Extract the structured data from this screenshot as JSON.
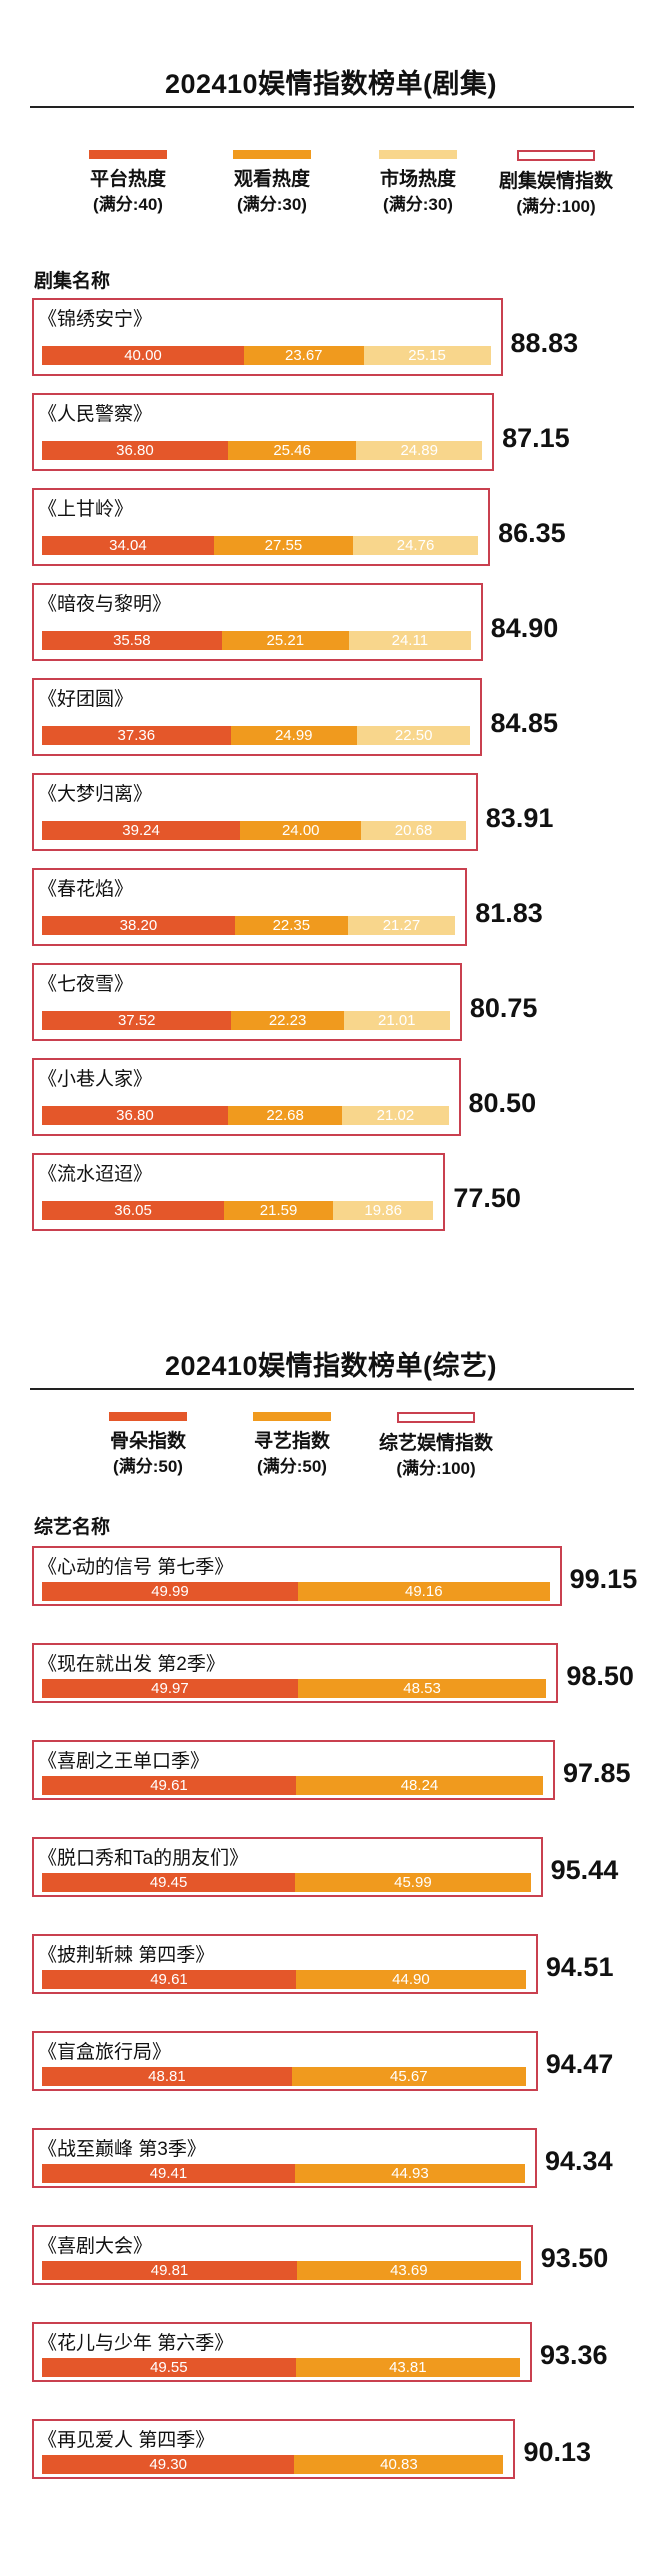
{
  "colors": {
    "platform": "#e4572a",
    "viewing": "#f09a1e",
    "market": "#f8d68c",
    "outline": "#c9404f"
  },
  "drama": {
    "title": "202410娱情指数榜单(剧集)",
    "legend": [
      {
        "name": "平台热度",
        "sub": "(满分:40)",
        "color": "#e4572a",
        "outline": false
      },
      {
        "name": "观看热度",
        "sub": "(满分:30)",
        "color": "#f09a1e",
        "outline": false
      },
      {
        "name": "市场热度",
        "sub": "(满分:30)",
        "color": "#f8d68c",
        "outline": false
      },
      {
        "name": "剧集娱情指数",
        "sub": "(满分:100)",
        "color": "#c9404f",
        "outline": true
      }
    ],
    "column_header": "剧集名称"
  },
  "variety": {
    "title": "202410娱情指数榜单(综艺)",
    "legend": [
      {
        "name": "骨朵指数",
        "sub": "(满分:50)",
        "color": "#e4572a",
        "outline": false
      },
      {
        "name": "寻艺指数",
        "sub": "(满分:50)",
        "color": "#f09a1e",
        "outline": false
      },
      {
        "name": "综艺娱情指数",
        "sub": "(满分:100)",
        "color": "#c9404f",
        "outline": true
      }
    ],
    "column_header": "综艺名称"
  },
  "chart_data": [
    {
      "type": "bar",
      "orientation": "horizontal-stacked",
      "title": "202410娱情指数榜单(剧集)",
      "categories": [
        "《锦绣安宁》",
        "《人民警察》",
        "《上甘岭》",
        "《暗夜与黎明》",
        "《好团圆》",
        "《大梦归离》",
        "《春花焰》",
        "《七夜雪》",
        "《小巷人家》",
        "《流水迢迢》"
      ],
      "series": [
        {
          "name": "平台热度",
          "values": [
            40.0,
            36.8,
            34.04,
            35.58,
            37.36,
            39.24,
            38.2,
            37.52,
            36.8,
            36.05
          ]
        },
        {
          "name": "观看热度",
          "values": [
            23.67,
            25.46,
            27.55,
            25.21,
            24.99,
            24.0,
            22.35,
            22.23,
            22.68,
            21.59
          ]
        },
        {
          "name": "市场热度",
          "values": [
            25.15,
            24.89,
            24.76,
            24.11,
            22.5,
            20.68,
            21.27,
            21.01,
            21.02,
            19.86
          ]
        },
        {
          "name": "剧集娱情指数",
          "values": [
            88.83,
            87.15,
            86.35,
            84.9,
            84.85,
            83.91,
            81.83,
            80.75,
            80.5,
            77.5
          ]
        }
      ]
    },
    {
      "type": "bar",
      "orientation": "horizontal-stacked",
      "title": "202410娱情指数榜单(综艺)",
      "categories": [
        "《心动的信号 第七季》",
        "《现在就出发 第2季》",
        "《喜剧之王单口季》",
        "《脱口秀和Ta的朋友们》",
        "《披荆斩棘 第四季》",
        "《盲盒旅行局》",
        "《战至巅峰 第3季》",
        "《喜剧大会》",
        "《花儿与少年 第六季》",
        "《再见爱人 第四季》"
      ],
      "series": [
        {
          "name": "骨朵指数",
          "values": [
            49.99,
            49.97,
            49.61,
            49.45,
            49.61,
            48.81,
            49.41,
            49.81,
            49.55,
            49.3
          ]
        },
        {
          "name": "寻艺指数",
          "values": [
            49.16,
            48.53,
            48.24,
            45.99,
            44.9,
            45.67,
            44.93,
            43.69,
            43.81,
            40.83
          ]
        },
        {
          "name": "综艺娱情指数",
          "values": [
            99.15,
            98.5,
            97.85,
            95.44,
            94.51,
            94.47,
            94.34,
            93.5,
            93.36,
            90.13
          ]
        }
      ]
    }
  ]
}
